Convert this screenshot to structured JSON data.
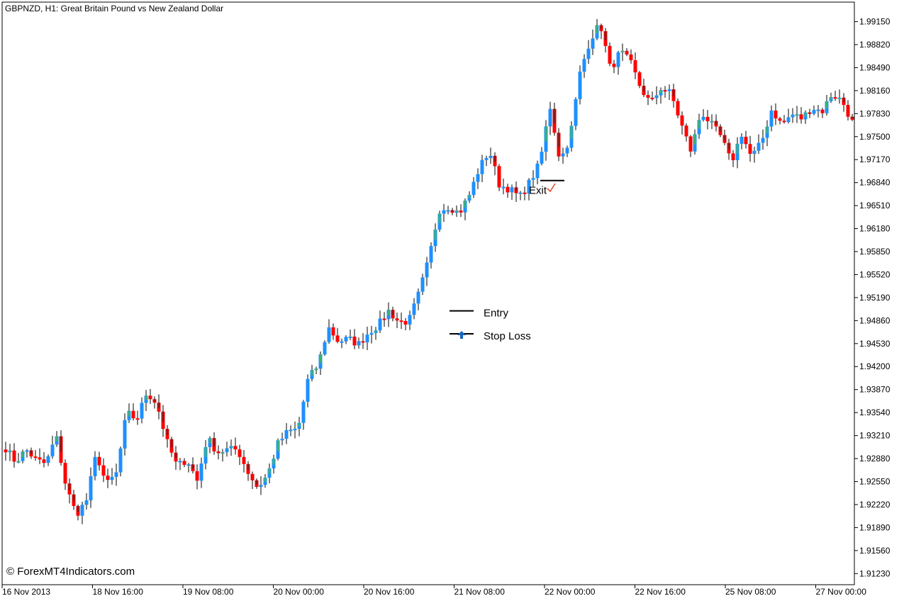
{
  "chart_data": {
    "type": "candlestick",
    "title": "GBPNZD, H1:  Great Britain Pound vs New Zealand Dollar",
    "watermark": "© ForexMT4Indicators.com",
    "ylim": [
      1.9107,
      1.9943
    ],
    "y_ticks": [
      "1.99150",
      "1.98820",
      "1.98490",
      "1.98160",
      "1.97830",
      "1.97500",
      "1.97170",
      "1.96840",
      "1.96510",
      "1.96180",
      "1.95850",
      "1.95520",
      "1.95190",
      "1.94860",
      "1.94530",
      "1.94200",
      "1.93870",
      "1.93540",
      "1.93210",
      "1.92880",
      "1.92550",
      "1.92220",
      "1.91890",
      "1.91560",
      "1.91230"
    ],
    "x_ticks": [
      "16 Nov 2013",
      "18 Nov 16:00",
      "19 Nov 08:00",
      "20 Nov 00:00",
      "20 Nov 16:00",
      "21 Nov 08:00",
      "22 Nov 00:00",
      "22 Nov 16:00",
      "25 Nov 08:00",
      "27 Nov 00:00"
    ],
    "colors": {
      "bull": "#1e90ff",
      "bear": "#ff0000",
      "bull_body": "#3cb371",
      "bear_body": "#8b1a1a",
      "wick": "#000000",
      "arrow": "#1565c0",
      "check": "#e05030"
    },
    "path": [
      1.9303,
      1.9283,
      1.9301,
      1.9286,
      1.928,
      1.9321,
      1.9247,
      1.9208,
      1.9227,
      1.9296,
      1.925,
      1.9267,
      1.9354,
      1.9344,
      1.9383,
      1.9367,
      1.9312,
      1.9277,
      1.9287,
      1.9256,
      1.9318,
      1.9297,
      1.9301,
      1.9301,
      1.927,
      1.9246,
      1.9265,
      1.9309,
      1.9327,
      1.933,
      1.9402,
      1.9422,
      1.9477,
      1.9456,
      1.946,
      1.9452,
      1.9469,
      1.948,
      1.95,
      1.9484,
      1.9485,
      1.9525,
      1.9575,
      1.9645,
      1.965,
      1.964,
      1.9666,
      1.9705,
      1.973,
      1.968,
      1.9675,
      1.9663,
      1.9685,
      1.9712,
      1.9795,
      1.9715,
      1.9749,
      1.9842,
      1.989,
      1.9912,
      1.9846,
      1.9872,
      1.9856,
      1.982,
      1.9797,
      1.982,
      1.9812,
      1.9769,
      1.9729,
      1.9786,
      1.9768,
      1.9749,
      1.9712,
      1.9755,
      1.972,
      1.9742,
      1.9789,
      1.9767,
      1.9782,
      1.9776,
      1.9792,
      1.9786,
      1.9812,
      1.9801,
      1.9771
    ],
    "seed": 7,
    "annotations": [
      {
        "label": "Entry",
        "price": 1.95
      },
      {
        "label": "Stop Loss",
        "price": 1.9467
      },
      {
        "label": "Exit",
        "price": 1.9687
      }
    ]
  }
}
